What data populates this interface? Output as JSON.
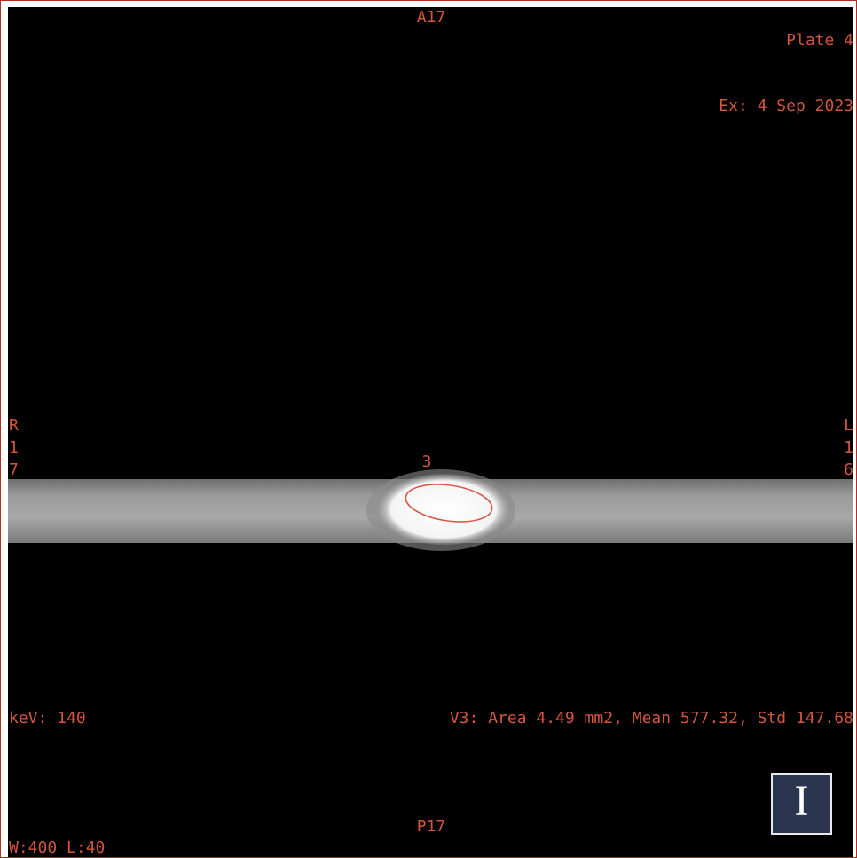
{
  "viewer": {
    "top_label": "A17",
    "plate": "Plate 4",
    "exam_date": "Ex: 4 Sep 2023",
    "left_orientation": [
      "R",
      "1",
      "7"
    ],
    "right_orientation": [
      "L",
      "1",
      "6"
    ],
    "roi_label": "3",
    "energy": "keV: 140",
    "roi_stats": "V3: Area 4.49 mm2, Mean 577.32, Std 147.68",
    "bottom_label": "P17",
    "window_level": "W:400 L:40",
    "logo": "I"
  }
}
